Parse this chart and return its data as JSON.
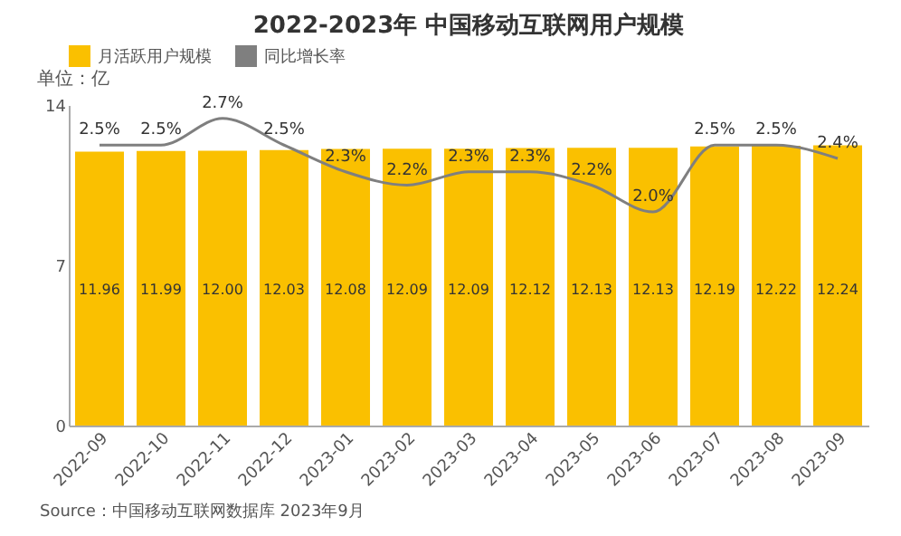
{
  "chart_data": {
    "type": "bar",
    "title": "2022-2023年 中国移动互联网用户规模",
    "ylabel": "单位：亿",
    "annotations": [
      "Source：中国移动互联网数据库 2023年9月"
    ],
    "categories": [
      "2022-09",
      "2022-10",
      "2022-11",
      "2022-12",
      "2023-01",
      "2023-02",
      "2023-03",
      "2023-04",
      "2023-05",
      "2023-06",
      "2023-07",
      "2023-08",
      "2023-09"
    ],
    "series": [
      {
        "name": "月活跃用户规模",
        "color": "#fac000",
        "values": [
          11.96,
          11.99,
          12.0,
          12.03,
          12.08,
          12.09,
          12.09,
          12.12,
          12.13,
          12.13,
          12.19,
          12.22,
          12.24
        ],
        "value_labels": [
          "11.96",
          "11.99",
          "12.00",
          "12.03",
          "12.08",
          "12.09",
          "12.09",
          "12.12",
          "12.13",
          "12.13",
          "12.19",
          "12.22",
          "12.24"
        ]
      },
      {
        "name": "同比增长率",
        "type": "line",
        "axis": "y2",
        "color": "#7f7f7f",
        "values": [
          2.5,
          2.5,
          2.7,
          2.5,
          2.3,
          2.2,
          2.3,
          2.3,
          2.2,
          2.0,
          2.5,
          2.5,
          2.4
        ],
        "value_labels": [
          "2.5%",
          "2.5%",
          "2.7%",
          "2.5%",
          "2.3%",
          "2.2%",
          "2.3%",
          "2.3%",
          "2.2%",
          "2.0%",
          "2.5%",
          "2.5%",
          "2.4%"
        ]
      }
    ],
    "ylim": [
      0,
      14
    ],
    "yticks": [
      0,
      7,
      14
    ],
    "y2lim": [
      0.4,
      2.8
    ],
    "tick_labels": "xy",
    "legend": "top",
    "grid": false,
    "marker": "none",
    "line_style": "solid"
  }
}
